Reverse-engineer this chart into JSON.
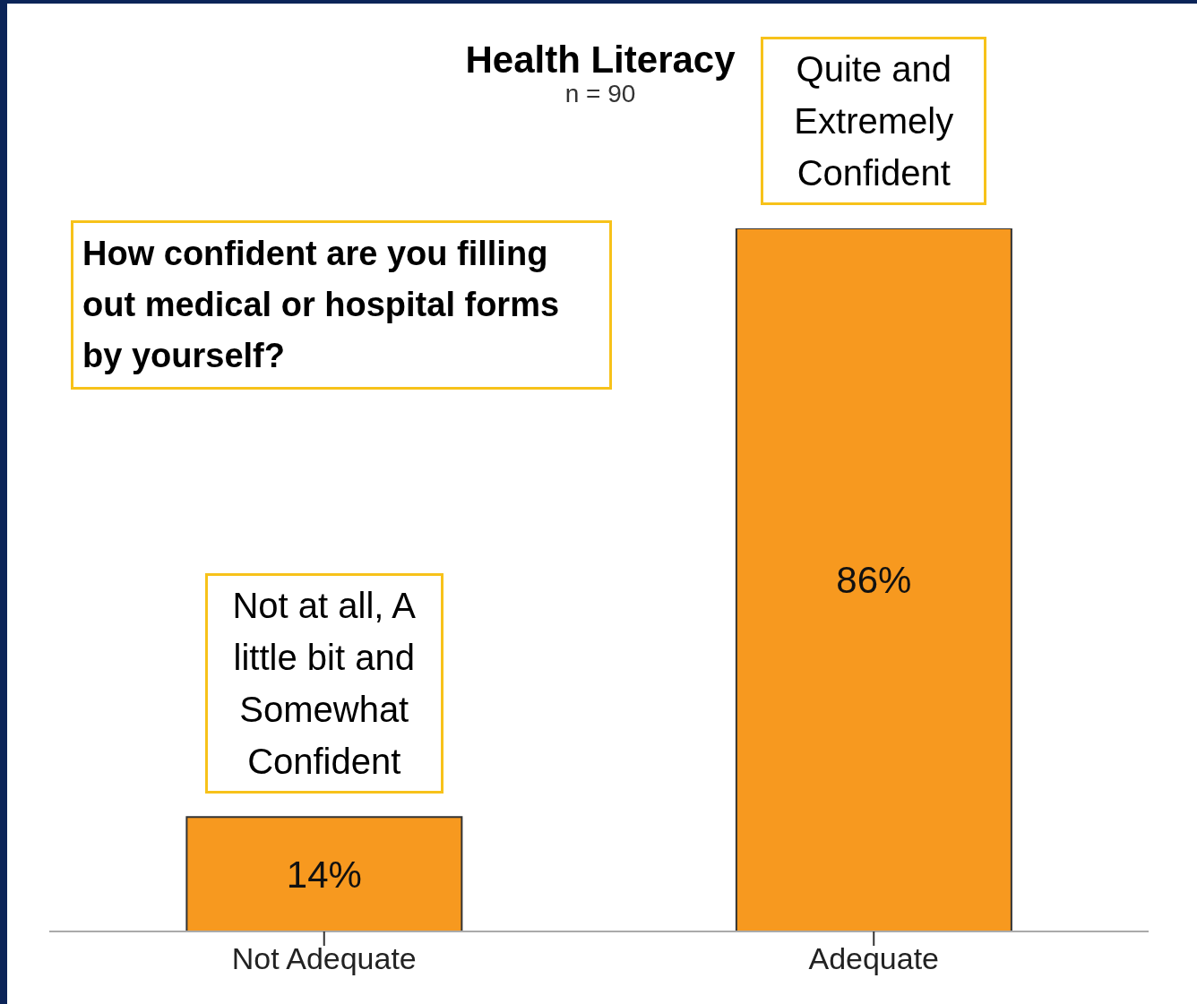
{
  "chart_data": {
    "type": "bar",
    "title": "Health Literacy",
    "subtitle": "n = 90",
    "categories": [
      "Not Adequate",
      "Adequate"
    ],
    "values": [
      14,
      86
    ],
    "color": "#f7991f",
    "value_labels": [
      "14%",
      "86%"
    ],
    "tick_labels": "x",
    "annotations": [
      "How confident are you filling out medical or hospital forms by yourself?",
      "Not at all, A little bit and Somewhat Confident",
      "Quite and Extremely Confident"
    ]
  }
}
